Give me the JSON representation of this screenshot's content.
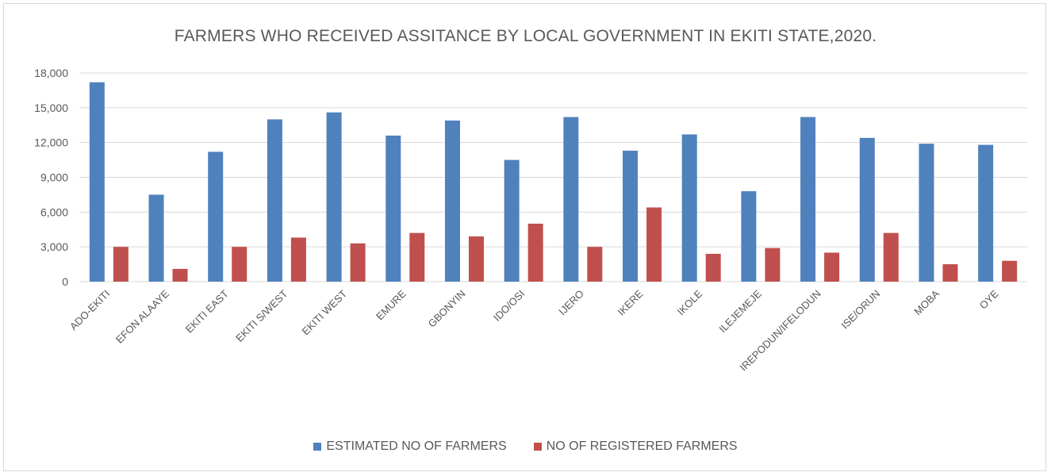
{
  "chart_data": {
    "type": "bar",
    "title": "FARMERS WHO RECEIVED ASSITANCE BY LOCAL GOVERNMENT IN EKITI STATE,2020.",
    "xlabel": "",
    "ylabel": "",
    "ylim": [
      0,
      18000
    ],
    "yticks": [
      0,
      3000,
      6000,
      9000,
      12000,
      15000,
      18000
    ],
    "ytick_labels": [
      "0",
      "3,000",
      "6,000",
      "9,000",
      "12,000",
      "15,000",
      "18,000"
    ],
    "grid": true,
    "legend_position": "bottom",
    "categories": [
      "ADO-EKITI",
      "EFON ALAAYE",
      "EKITI EAST",
      "EKITI S/WEST",
      "EKITI WEST",
      "EMURE",
      "GBONYIN",
      "IDO/OSI",
      "IJERO",
      "IKERE",
      "IKOLE",
      "ILEJEMEJE",
      "IREPODUN/IFELODUN",
      "ISE/ORUN",
      "MOBA",
      "OYE"
    ],
    "series": [
      {
        "name": "ESTIMATED NO OF FARMERS",
        "color": "#4f81bd",
        "values": [
          17200,
          7500,
          11200,
          14000,
          14600,
          12600,
          13900,
          10500,
          14200,
          11300,
          12700,
          7800,
          14200,
          12400,
          11900,
          11800
        ]
      },
      {
        "name": "NO OF REGISTERED FARMERS",
        "color": "#c0504d",
        "values": [
          3000,
          1100,
          3000,
          3800,
          3300,
          4200,
          3900,
          5000,
          3000,
          6400,
          2400,
          2900,
          2500,
          4200,
          1500,
          1800
        ]
      }
    ]
  }
}
